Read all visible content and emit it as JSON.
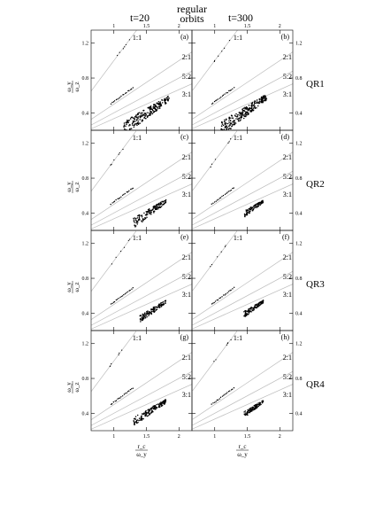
{
  "header": {
    "title_line1": "regular",
    "title_line2": "orbits",
    "col_labels": [
      "t=20",
      "t=300"
    ]
  },
  "row_labels": [
    "QR1",
    "QR2",
    "QR3",
    "QR4"
  ],
  "panel_letters": [
    "(a)",
    "(b)",
    "(c)",
    "(d)",
    "(e)",
    "(f)",
    "(g)",
    "(h)"
  ],
  "resonance_labels": [
    "1:1",
    "2:1",
    "5:2",
    "3:1"
  ],
  "axis": {
    "y_label_num": "ω_y",
    "y_label_den": "ω_z",
    "x_label_num": "r_c",
    "x_label_den": "ω_y",
    "x_ticks": [
      "1",
      "1.5",
      "2"
    ],
    "y_ticks": [
      "0.4",
      "0.8",
      "1.2"
    ]
  },
  "chart_data": {
    "type": "scatter",
    "layout": "4 rows x 2 columns",
    "xlim": [
      0.65,
      2.2
    ],
    "ylim": [
      0.2,
      1.35
    ],
    "xlabel": "rc / ωy",
    "ylabel": "ωy / ωz",
    "resonance_lines": [
      {
        "name": "1:1",
        "slope": 1.0
      },
      {
        "name": "2:1",
        "slope": 0.5
      },
      {
        "name": "5:2",
        "slope": 0.4
      },
      {
        "name": "3:1",
        "slope": 0.3333
      }
    ],
    "panels": [
      {
        "id": "(a)",
        "row": "QR1",
        "time": "t=20",
        "cloud": {
          "x": [
            1.15,
            1.85
          ],
          "y": [
            0.3,
            0.6
          ],
          "n": 240
        }
      },
      {
        "id": "(b)",
        "row": "QR1",
        "time": "t=300",
        "cloud": {
          "x": [
            1.1,
            1.8
          ],
          "y": [
            0.3,
            0.62
          ],
          "n": 280
        }
      },
      {
        "id": "(c)",
        "row": "QR2",
        "time": "t=20",
        "cloud": {
          "x": [
            1.3,
            1.8
          ],
          "y": [
            0.34,
            0.56
          ],
          "n": 150
        }
      },
      {
        "id": "(d)",
        "row": "QR2",
        "time": "t=300",
        "cloud": {
          "x": [
            1.45,
            1.75
          ],
          "y": [
            0.42,
            0.55
          ],
          "n": 110
        }
      },
      {
        "id": "(e)",
        "row": "QR3",
        "time": "t=20",
        "cloud": {
          "x": [
            1.4,
            1.8
          ],
          "y": [
            0.38,
            0.55
          ],
          "n": 130
        }
      },
      {
        "id": "(f)",
        "row": "QR3",
        "time": "t=300",
        "cloud": {
          "x": [
            1.45,
            1.75
          ],
          "y": [
            0.42,
            0.55
          ],
          "n": 120
        }
      },
      {
        "id": "(g)",
        "row": "QR4",
        "time": "t=20",
        "cloud": {
          "x": [
            1.3,
            1.8
          ],
          "y": [
            0.36,
            0.56
          ],
          "n": 170
        }
      },
      {
        "id": "(h)",
        "row": "QR4",
        "time": "t=300",
        "cloud": {
          "x": [
            1.45,
            1.75
          ],
          "y": [
            0.42,
            0.55
          ],
          "n": 110
        }
      }
    ]
  }
}
